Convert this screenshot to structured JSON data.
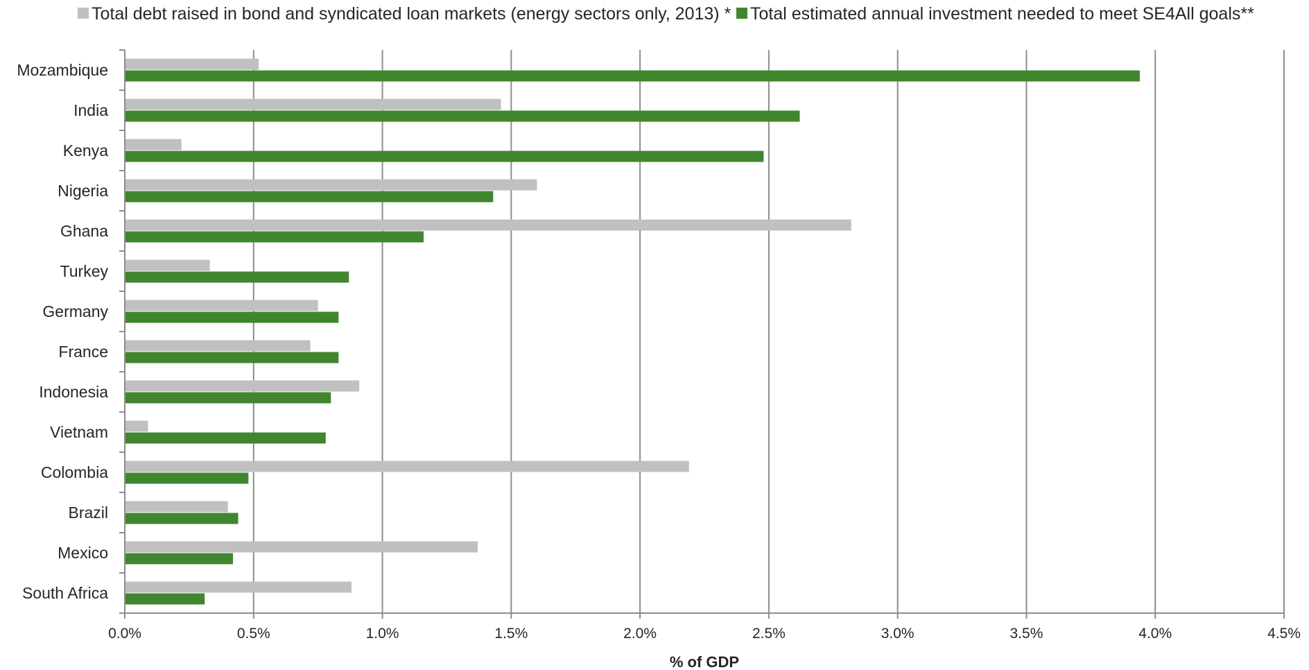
{
  "chart_data": {
    "type": "bar",
    "orientation": "horizontal",
    "categories": [
      "Mozambique",
      "India",
      "Kenya",
      "Nigeria",
      "Ghana",
      "Turkey",
      "Germany",
      "France",
      "Indonesia",
      "Vietnam",
      "Colombia",
      "Brazil",
      "Mexico",
      "South Africa"
    ],
    "series": [
      {
        "name": "Total debt raised in bond and syndicated loan markets (energy sectors only, 2013) *",
        "color": "#c0c0c0",
        "values": [
          0.52,
          1.46,
          0.22,
          1.6,
          2.82,
          0.33,
          0.75,
          0.72,
          0.91,
          0.09,
          2.19,
          0.4,
          1.37,
          0.88
        ]
      },
      {
        "name": "Total estimated annual investment needed to meet SE4All goals**",
        "color": "#41862f",
        "values": [
          3.94,
          2.62,
          2.48,
          1.43,
          1.16,
          0.87,
          0.83,
          0.83,
          0.8,
          0.78,
          0.48,
          0.44,
          0.42,
          0.31
        ]
      }
    ],
    "xlim": [
      0,
      4.5
    ],
    "ticks": [
      "0.0%",
      "0.5%",
      "1.0%",
      "1.5%",
      "2.0%",
      "2.5%",
      "3.0%",
      "3.5%",
      "4.0%",
      "4.5%"
    ],
    "xlabel": "% of GDP",
    "ylabel": "",
    "title": "",
    "grid": "vertical",
    "legend": "top"
  }
}
